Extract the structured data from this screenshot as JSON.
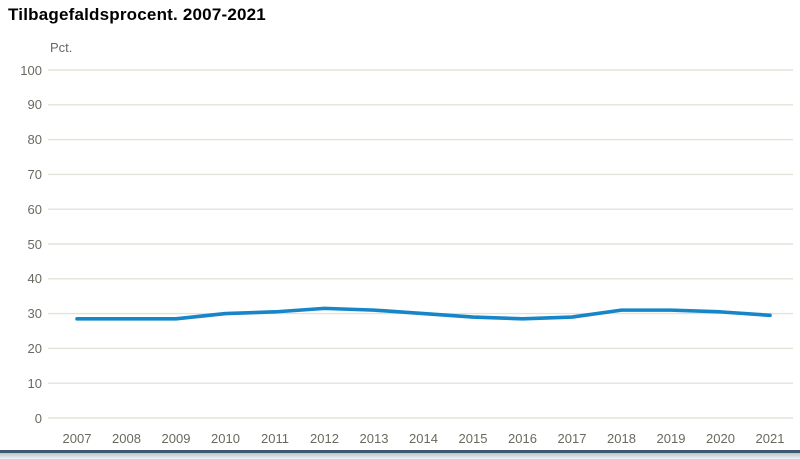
{
  "title": "Tilbagefaldsprocent. 2007-2021",
  "unit_label": "Pct.",
  "colors": {
    "line": "#1786c8",
    "grid": "#e3e2d8",
    "tick_text": "#6a695f",
    "title_text": "#000000",
    "footer_rule": "#3e5971",
    "footer_gradient_start": "#b7c4cd"
  },
  "chart_data": {
    "type": "line",
    "title": "Tilbagefaldsprocent. 2007-2021",
    "xlabel": "",
    "ylabel": "Pct.",
    "categories": [
      "2007",
      "2008",
      "2009",
      "2010",
      "2011",
      "2012",
      "2013",
      "2014",
      "2015",
      "2016",
      "2017",
      "2018",
      "2019",
      "2020",
      "2021"
    ],
    "series": [
      {
        "name": "Tilbagefaldsprocent",
        "values": [
          28.5,
          28.5,
          28.5,
          30,
          30.5,
          31.5,
          31,
          30,
          29,
          28.5,
          29,
          31,
          31,
          30.5,
          29.5
        ]
      }
    ],
    "ylim": [
      0,
      100
    ],
    "ytick_step": 10,
    "grid": true,
    "legend_position": "none"
  }
}
